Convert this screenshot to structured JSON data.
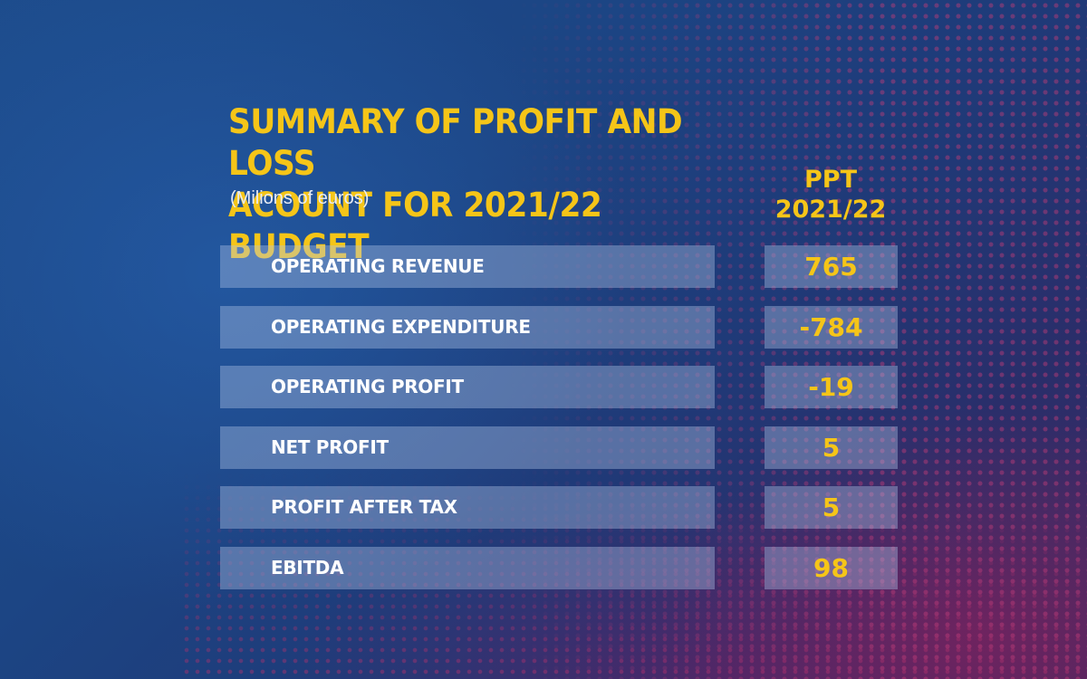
{
  "colors": {
    "accent": "#f5c518",
    "label_text": "#ffffff",
    "row_fill": "#afc3e6",
    "background_blue": "#1d4c8c",
    "background_magenta": "#96205a"
  },
  "chart_data": {
    "type": "table",
    "title_line1": "SUMMARY OF PROFIT AND LOSS",
    "title_line2": "ACOUNT FOR 2021/22 BUDGET",
    "subtitle": "(Milions of euros)",
    "column_header_line1": "PPT",
    "column_header_line2": "2021/22",
    "rows": [
      {
        "label": "OPERATING REVENUE",
        "value": "765"
      },
      {
        "label": "OPERATING EXPENDITURE",
        "value": "-784"
      },
      {
        "label": "OPERATING PROFIT",
        "value": "-19"
      },
      {
        "label": "NET PROFIT",
        "value": "5"
      },
      {
        "label": "PROFIT AFTER TAX",
        "value": "5"
      },
      {
        "label": "EBITDA",
        "value": "98"
      }
    ]
  }
}
